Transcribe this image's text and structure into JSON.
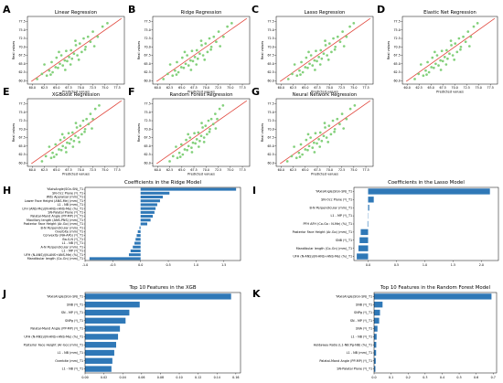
{
  "colors": {
    "scatter_point": "#7ccd74",
    "fit_line": "#e0443a",
    "bar": "#2f78b7"
  },
  "chart_data": [
    {
      "id": "A",
      "type": "scatter",
      "letter": "A",
      "title": "Linear Regression",
      "xlabel": "Predicted values",
      "ylabel": "Real values",
      "xlim": [
        59,
        79
      ],
      "ylim": [
        59,
        79
      ],
      "xticks": [
        "60.0",
        "62.5",
        "65.0",
        "67.5",
        "70.0",
        "72.5",
        "75.0",
        "77.5"
      ],
      "yticks": [
        "60.0",
        "62.5",
        "65.0",
        "67.5",
        "70.0",
        "72.5",
        "75.0",
        "77.5"
      ],
      "x": [
        61.0,
        62.0,
        62.5,
        63.0,
        63.5,
        64.0,
        64.2,
        64.8,
        65.0,
        65.3,
        65.7,
        66.0,
        66.3,
        66.7,
        67.0,
        67.2,
        67.6,
        68.0,
        68.2,
        68.6,
        69.0,
        69.3,
        69.8,
        70.2,
        70.6,
        71.0,
        71.5,
        72.0,
        72.5,
        73.5,
        74.5,
        75.5,
        63.8,
        66.8,
        68.9,
        70.9,
        65.5,
        67.9,
        69.6,
        72.8
      ],
      "y": [
        60.5,
        62.0,
        64.8,
        61.5,
        63.0,
        65.5,
        62.5,
        64.0,
        66.8,
        63.8,
        65.0,
        67.5,
        64.5,
        66.0,
        68.8,
        65.8,
        67.0,
        69.0,
        66.5,
        68.0,
        70.5,
        67.5,
        71.0,
        68.5,
        72.5,
        70.0,
        73.0,
        71.5,
        74.5,
        73.0,
        76.0,
        77.0,
        61.8,
        63.2,
        71.8,
        69.2,
        68.5,
        64.8,
        66.2,
        70.2
      ]
    },
    {
      "id": "B",
      "type": "scatter",
      "letter": "B",
      "title": "Ridge Regression",
      "xlabel": "Predicted values",
      "ylabel": "Real values",
      "xlim": [
        59,
        79
      ],
      "ylim": [
        59,
        79
      ],
      "xticks": [
        "60.0",
        "62.5",
        "65.0",
        "67.5",
        "70.0",
        "72.5",
        "75.0",
        "77.5"
      ],
      "yticks": [
        "60.0",
        "62.5",
        "65.0",
        "67.5",
        "70.0",
        "72.5",
        "75.0",
        "77.5"
      ],
      "x": [
        61.2,
        62.1,
        62.6,
        63.1,
        63.6,
        64.0,
        64.3,
        64.9,
        65.1,
        65.4,
        65.8,
        66.1,
        66.4,
        66.8,
        67.1,
        67.3,
        67.7,
        68.1,
        68.3,
        68.7,
        69.1,
        69.4,
        69.9,
        70.3,
        70.7,
        71.1,
        71.6,
        72.1,
        72.6,
        73.6,
        74.4,
        75.3,
        63.9,
        66.9,
        69.0,
        71.0,
        65.6,
        68.0,
        69.7,
        72.9
      ],
      "y": [
        60.5,
        62.0,
        64.8,
        61.5,
        63.0,
        65.5,
        62.5,
        64.0,
        66.8,
        63.8,
        65.0,
        67.5,
        64.5,
        66.0,
        68.8,
        65.8,
        67.0,
        69.0,
        66.5,
        68.0,
        70.5,
        67.5,
        71.0,
        68.5,
        72.5,
        70.0,
        73.0,
        71.5,
        74.5,
        73.0,
        76.0,
        77.0,
        61.8,
        63.2,
        71.8,
        69.2,
        68.5,
        64.8,
        66.2,
        70.2
      ]
    },
    {
      "id": "C",
      "type": "scatter",
      "letter": "C",
      "title": "Lasso Regression",
      "xlabel": "Predicted values",
      "ylabel": "Real values",
      "xlim": [
        59,
        79
      ],
      "ylim": [
        59,
        79
      ],
      "xticks": [
        "60.0",
        "62.5",
        "65.0",
        "67.5",
        "70.0",
        "72.5",
        "75.0",
        "77.5"
      ],
      "yticks": [
        "60.0",
        "62.5",
        "65.0",
        "67.5",
        "70.0",
        "72.5",
        "75.0",
        "77.5"
      ],
      "x": [
        61.5,
        62.3,
        62.8,
        63.3,
        63.8,
        64.2,
        64.5,
        65.0,
        65.2,
        65.5,
        65.9,
        66.2,
        66.5,
        66.9,
        67.2,
        67.4,
        67.8,
        68.2,
        68.4,
        68.8,
        69.2,
        69.5,
        70.0,
        70.4,
        70.8,
        71.2,
        71.7,
        72.2,
        72.7,
        73.5,
        74.2,
        75.0,
        64.0,
        67.0,
        69.1,
        71.1,
        65.7,
        68.1,
        69.8,
        73.0
      ],
      "y": [
        60.5,
        62.0,
        64.8,
        61.5,
        63.0,
        65.5,
        62.5,
        64.0,
        66.8,
        63.8,
        65.0,
        67.5,
        64.5,
        66.0,
        68.8,
        65.8,
        67.0,
        69.0,
        66.5,
        68.0,
        70.5,
        67.5,
        71.0,
        68.5,
        72.5,
        70.0,
        73.0,
        71.5,
        74.5,
        73.0,
        76.0,
        77.0,
        61.8,
        63.2,
        71.8,
        69.2,
        68.5,
        64.8,
        66.2,
        70.2
      ]
    },
    {
      "id": "D",
      "type": "scatter",
      "letter": "D",
      "title": "Elastic Net Regression",
      "xlabel": "Predicted values",
      "ylabel": "Real values",
      "xlim": [
        59,
        79
      ],
      "ylim": [
        59,
        79
      ],
      "xticks": [
        "60.0",
        "62.5",
        "65.0",
        "67.5",
        "70.0",
        "72.5",
        "75.0",
        "77.5"
      ],
      "yticks": [
        "60.0",
        "62.5",
        "65.0",
        "67.5",
        "70.0",
        "72.5",
        "75.0",
        "77.5"
      ],
      "x": [
        61.6,
        62.4,
        62.9,
        63.4,
        63.9,
        64.3,
        64.6,
        65.1,
        65.3,
        65.6,
        66.0,
        66.3,
        66.6,
        67.0,
        67.3,
        67.5,
        67.9,
        68.3,
        68.5,
        68.9,
        69.3,
        69.6,
        70.1,
        70.5,
        70.9,
        71.3,
        71.8,
        72.3,
        72.8,
        73.4,
        74.0,
        74.8,
        64.1,
        67.1,
        69.2,
        71.2,
        65.8,
        68.2,
        69.9,
        73.1
      ],
      "y": [
        60.5,
        62.0,
        64.8,
        61.5,
        63.0,
        65.5,
        62.5,
        64.0,
        66.8,
        63.8,
        65.0,
        67.5,
        64.5,
        66.0,
        68.8,
        65.8,
        67.0,
        69.0,
        66.5,
        68.0,
        70.5,
        67.5,
        71.0,
        68.5,
        72.5,
        70.0,
        73.0,
        71.5,
        74.5,
        73.0,
        76.0,
        77.0,
        61.8,
        63.2,
        71.8,
        69.2,
        68.5,
        64.8,
        66.2,
        70.2
      ]
    },
    {
      "id": "E",
      "type": "scatter",
      "letter": "E",
      "title": "XGBoost Regression",
      "xlabel": "Predicted values",
      "ylabel": "Real values",
      "xlim": [
        59,
        79
      ],
      "ylim": [
        59,
        79
      ],
      "xticks": [
        "60.0",
        "62.5",
        "65.0",
        "67.5",
        "70.0",
        "72.5",
        "75.0",
        "77.5"
      ],
      "yticks": [
        "60.0",
        "62.5",
        "65.0",
        "67.5",
        "70.0",
        "72.5",
        "75.0",
        "77.5"
      ],
      "x": [
        62.0,
        62.8,
        63.5,
        63.9,
        64.2,
        64.8,
        65.0,
        65.5,
        65.8,
        66.0,
        66.3,
        66.6,
        66.9,
        67.2,
        67.5,
        67.7,
        68.0,
        68.3,
        68.6,
        68.9,
        69.2,
        69.5,
        69.9,
        70.2,
        70.5,
        70.9,
        71.2,
        71.6,
        72.0,
        72.5,
        73.0,
        73.8,
        64.5,
        67.0,
        69.0,
        70.8,
        66.2,
        68.4,
        69.7,
        72.3
      ],
      "y": [
        60.5,
        62.0,
        64.8,
        61.5,
        63.0,
        65.5,
        62.5,
        64.0,
        66.8,
        63.8,
        65.0,
        67.5,
        64.5,
        66.0,
        68.8,
        65.8,
        67.0,
        69.0,
        66.5,
        68.0,
        70.5,
        67.5,
        71.0,
        68.5,
        72.5,
        70.0,
        73.0,
        71.5,
        74.5,
        73.0,
        76.0,
        77.0,
        61.8,
        63.2,
        71.8,
        69.2,
        68.5,
        64.8,
        66.2,
        70.2
      ]
    },
    {
      "id": "F",
      "type": "scatter",
      "letter": "F",
      "title": "Random Forest Regression",
      "xlabel": "Predicted values",
      "ylabel": "Real values",
      "xlim": [
        59,
        79
      ],
      "ylim": [
        59,
        79
      ],
      "xticks": [
        "60.0",
        "62.5",
        "65.0",
        "67.5",
        "70.0",
        "72.5",
        "75.0",
        "77.5"
      ],
      "yticks": [
        "60.0",
        "62.5",
        "65.0",
        "67.5",
        "70.0",
        "72.5",
        "75.0",
        "77.5"
      ],
      "x": [
        62.5,
        63.2,
        63.8,
        64.1,
        64.5,
        64.9,
        65.2,
        65.6,
        65.9,
        66.1,
        66.4,
        66.7,
        67.0,
        67.3,
        67.6,
        67.8,
        68.1,
        68.4,
        68.7,
        69.0,
        69.3,
        69.6,
        69.9,
        70.2,
        70.5,
        70.8,
        71.1,
        71.5,
        71.9,
        72.3,
        72.8,
        73.5,
        64.7,
        67.1,
        69.1,
        70.7,
        66.3,
        68.5,
        69.6,
        72.0
      ],
      "y": [
        60.5,
        62.0,
        64.8,
        61.5,
        63.0,
        65.5,
        62.5,
        64.0,
        66.8,
        63.8,
        65.0,
        67.5,
        64.5,
        66.0,
        68.8,
        65.8,
        67.0,
        69.0,
        66.5,
        68.0,
        70.5,
        67.5,
        71.0,
        68.5,
        72.5,
        70.0,
        73.0,
        71.5,
        74.5,
        73.0,
        76.0,
        77.0,
        61.8,
        63.2,
        71.8,
        69.2,
        68.5,
        64.8,
        66.2,
        70.2
      ]
    },
    {
      "id": "G",
      "type": "scatter",
      "letter": "G",
      "title": "Neural Network Regression",
      "xlabel": "Predicted values",
      "ylabel": "Real values",
      "xlim": [
        59,
        79
      ],
      "ylim": [
        59,
        79
      ],
      "xticks": [
        "60.0",
        "62.5",
        "65.0",
        "67.5",
        "70.0",
        "72.5",
        "75.0",
        "77.5"
      ],
      "yticks": [
        "60.0",
        "62.5",
        "65.0",
        "67.5",
        "70.0",
        "72.5",
        "75.0",
        "77.5"
      ],
      "x": [
        61.3,
        62.2,
        62.7,
        63.2,
        63.7,
        64.1,
        64.4,
        65.0,
        65.2,
        65.5,
        65.8,
        66.1,
        66.5,
        66.8,
        67.1,
        67.4,
        67.8,
        68.1,
        68.4,
        68.8,
        69.1,
        69.4,
        69.9,
        70.3,
        70.7,
        71.1,
        71.6,
        72.1,
        72.6,
        73.5,
        74.3,
        75.2,
        63.9,
        66.9,
        69.0,
        71.0,
        65.6,
        68.0,
        69.7,
        72.9
      ],
      "y": [
        60.5,
        62.0,
        64.8,
        61.5,
        63.0,
        65.5,
        62.5,
        64.0,
        66.8,
        63.8,
        65.0,
        67.5,
        64.5,
        66.0,
        68.8,
        65.8,
        67.0,
        69.0,
        66.5,
        68.0,
        70.5,
        67.5,
        71.0,
        68.5,
        72.5,
        70.0,
        73.0,
        71.5,
        74.5,
        73.0,
        76.0,
        77.0,
        61.8,
        63.2,
        71.8,
        69.2,
        68.5,
        64.8,
        66.2,
        70.2
      ]
    },
    {
      "id": "H",
      "type": "bar",
      "letter": "H",
      "title": "Coefficients in the Ridge Model",
      "xlim": [
        -1.0,
        1.8
      ],
      "xticks": [
        "-1.0",
        "-0.5",
        "0.0",
        "0.5",
        "1.0",
        "1.5"
      ],
      "tick_values": [
        -1.0,
        -0.5,
        0.0,
        0.5,
        1.0,
        1.5
      ],
      "categories": [
        "YAxisAngle(SGn-SN)_T1",
        "SN-Occ Plane (º)_T1",
        "Wits Appraisal (mm)_T1",
        "Lower Face Height (ANS-Me) (mm)_T1",
        "L1 - NB (mm)_T1",
        "LFH (ANS-Me)/(N-ANS+ANS-Me) (%)_T1",
        "SN-Palatal Plane (º)_T1",
        "Palatal-Mand Angle (PP-MP) (º)_T1",
        "Maxillary length (ANS-PNS) (mm)_T1",
        "Posterior Face Height (Ar-Go) (mm)_T1",
        "B-N Perpendicular (mm)_T1",
        "Overbite (mm)_T1",
        "Convexity (NA-APo) (º)_T1",
        "Ba-S-N (º)_T1",
        "L1 - NB (º)_T1",
        "A-N Perpendicular (mm)_T1",
        "L1 - MP (º)_T1",
        "UFH (N-ANS)/(N-ANS+ANS-Me) (%)_T1",
        "Mandibular length (Co-Gn) (mm)_T1"
      ],
      "values": [
        1.72,
        0.52,
        0.4,
        0.35,
        0.3,
        0.27,
        0.25,
        0.22,
        0.18,
        0.12,
        -0.02,
        -0.05,
        -0.07,
        -0.09,
        -0.11,
        -0.14,
        -0.18,
        -0.21,
        -0.92
      ]
    },
    {
      "id": "I",
      "type": "bar",
      "letter": "I",
      "title": "Coefficients in the Lasso Model",
      "xlim": [
        -0.25,
        2.3
      ],
      "xticks": [
        "0.0",
        "0.5",
        "1.0",
        "1.5",
        "2.0"
      ],
      "tick_values": [
        0.0,
        0.5,
        1.0,
        1.5,
        2.0
      ],
      "categories": [
        "YAxisAngle(SGn-SN)_T1",
        "SN-Occ Plane (º)_T1",
        "B-N Perpendicular (mm)_T1",
        "L1 - MP (º)_T1",
        "PFH AFH (Co-Go : N-Me) (%)_T1",
        "Posterior Face Height (Ar-Go) (mm)_T1",
        "SNB (º)_T1",
        "Mandibular length (Co-Gn) (mm)_T1",
        "UFH (N-ANS)/(N-ANS+ANS-Me) (%)_T1"
      ],
      "values": [
        2.15,
        0.1,
        0.02,
        0.0,
        -0.01,
        -0.13,
        -0.15,
        -0.17,
        -0.2
      ]
    },
    {
      "id": "J",
      "type": "bar",
      "letter": "J",
      "title": "Top 10 Features in the XGB",
      "xlim": [
        0,
        0.165
      ],
      "xticks": [
        "0.00",
        "0.02",
        "0.04",
        "0.06",
        "0.08",
        "0.10",
        "0.12",
        "0.14",
        "0.16"
      ],
      "tick_values": [
        0.0,
        0.02,
        0.04,
        0.06,
        0.08,
        0.1,
        0.12,
        0.14,
        0.16
      ],
      "categories": [
        "YAxisAngle(SGn-SN)_T1",
        "SNB (º)_T1",
        "SN - MP (º)_T1",
        "SNPg (º)_T1",
        "Palatal-Mand Angle (PP-MP) (º)_T1",
        "UFH (N-ANS)/(N-ANS+ANS-Me) (%)_T1",
        "Posterior Face Height (Ar-Go) (mm)_T1",
        "L1 - NB (mm)_T1",
        "Overbite (mm)_T1",
        "L1 - NB (º)_T1"
      ],
      "values": [
        0.155,
        0.058,
        0.047,
        0.043,
        0.037,
        0.035,
        0.033,
        0.031,
        0.029,
        0.028
      ]
    },
    {
      "id": "K",
      "type": "bar",
      "letter": "K",
      "title": "Top 10 Features in the Random Forest Model",
      "xlim": [
        0,
        0.72
      ],
      "xticks": [
        "0.0",
        "0.1",
        "0.2",
        "0.3",
        "0.4",
        "0.5",
        "0.6",
        "0.7"
      ],
      "tick_values": [
        0.0,
        0.1,
        0.2,
        0.3,
        0.4,
        0.5,
        0.6,
        0.7
      ],
      "categories": [
        "YAxisAngle(SGn-SN)_T1",
        "SNB (º)_T1",
        "SNPg (º)_T1",
        "SN - MP (º)_T1",
        "SNA (º)_T1",
        "L1 - NB (º)_T1",
        "Holdaway Ratio (L1-NB:Pg-NB) (%)_T1",
        "L1 - NB (mm)_T1",
        "Palatal-Mand Angle (PP-MP) (º)_T1",
        "SN-Palatal Plane (º)_T1"
      ],
      "values": [
        0.69,
        0.05,
        0.035,
        0.03,
        0.02,
        0.015,
        0.013,
        0.012,
        0.01,
        0.008
      ]
    }
  ]
}
